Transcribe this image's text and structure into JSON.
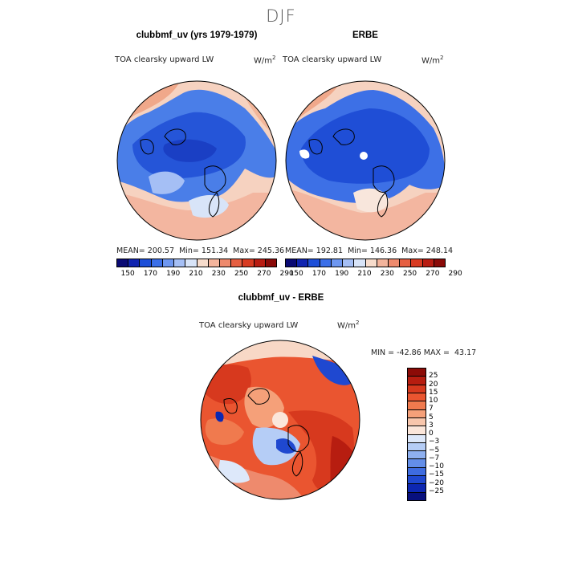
{
  "figure": {
    "season": "DJF"
  },
  "chart_data": [
    {
      "type": "heatmap",
      "projection": "north-polar-stereographic",
      "title": "clubbmf_uv (yrs 1979-1979)",
      "variable": "TOA clearsky upward LW",
      "units_base": "W/m",
      "units_exp": "2",
      "stats_text": "MEAN= 200.57  Min= 151.34  Max= 245.36",
      "mean": 200.57,
      "min": 151.34,
      "max": 245.36,
      "colorbar_ticks": [
        "150",
        "170",
        "190",
        "210",
        "230",
        "250",
        "270",
        "290"
      ],
      "colorbar_colors": [
        "#0a0a74",
        "#1024b0",
        "#1d4fd8",
        "#3b6fe8",
        "#6e97f0",
        "#a5bff5",
        "#d8e4f8",
        "#f7dccc",
        "#f3b49c",
        "#ee8a6d",
        "#e65f42",
        "#d83b22",
        "#b81c12",
        "#8a0a08"
      ]
    },
    {
      "type": "heatmap",
      "projection": "north-polar-stereographic",
      "title": "ERBE",
      "variable": "TOA clearsky upward LW",
      "units_base": "W/m",
      "units_exp": "2",
      "stats_text": "MEAN= 192.81  Min= 146.36  Max= 248.14",
      "mean": 192.81,
      "min": 146.36,
      "max": 248.14,
      "colorbar_ticks": [
        "150",
        "170",
        "190",
        "210",
        "230",
        "250",
        "270",
        "290"
      ],
      "colorbar_colors": [
        "#0a0a74",
        "#1024b0",
        "#1d4fd8",
        "#3b6fe8",
        "#6e97f0",
        "#a5bff5",
        "#d8e4f8",
        "#f7dccc",
        "#f3b49c",
        "#ee8a6d",
        "#e65f42",
        "#d83b22",
        "#b81c12",
        "#8a0a08"
      ]
    },
    {
      "type": "heatmap",
      "projection": "north-polar-stereographic",
      "title": "clubbmf_uv - ERBE",
      "variable": "TOA clearsky upward LW",
      "units_base": "W/m",
      "units_exp": "2",
      "stats_text": "MIN = -42.86 MAX =  43.17",
      "min": -42.86,
      "max": 43.17,
      "colorbar_ticks": [
        "25",
        "20",
        "15",
        "10",
        "7",
        "5",
        "3",
        "0",
        "−3",
        "−5",
        "−7",
        "−10",
        "−15",
        "−20",
        "−25"
      ],
      "colorbar_colors": [
        "#8c0b07",
        "#b71d10",
        "#d7391e",
        "#ea5530",
        "#f07a4e",
        "#f5a079",
        "#f8c6ac",
        "#fbe6da",
        "#dde8fa",
        "#b5cdf6",
        "#8eb0f0",
        "#638ee8",
        "#3e6ce0",
        "#1f48d0",
        "#0d27b2",
        "#08107e"
      ]
    }
  ]
}
